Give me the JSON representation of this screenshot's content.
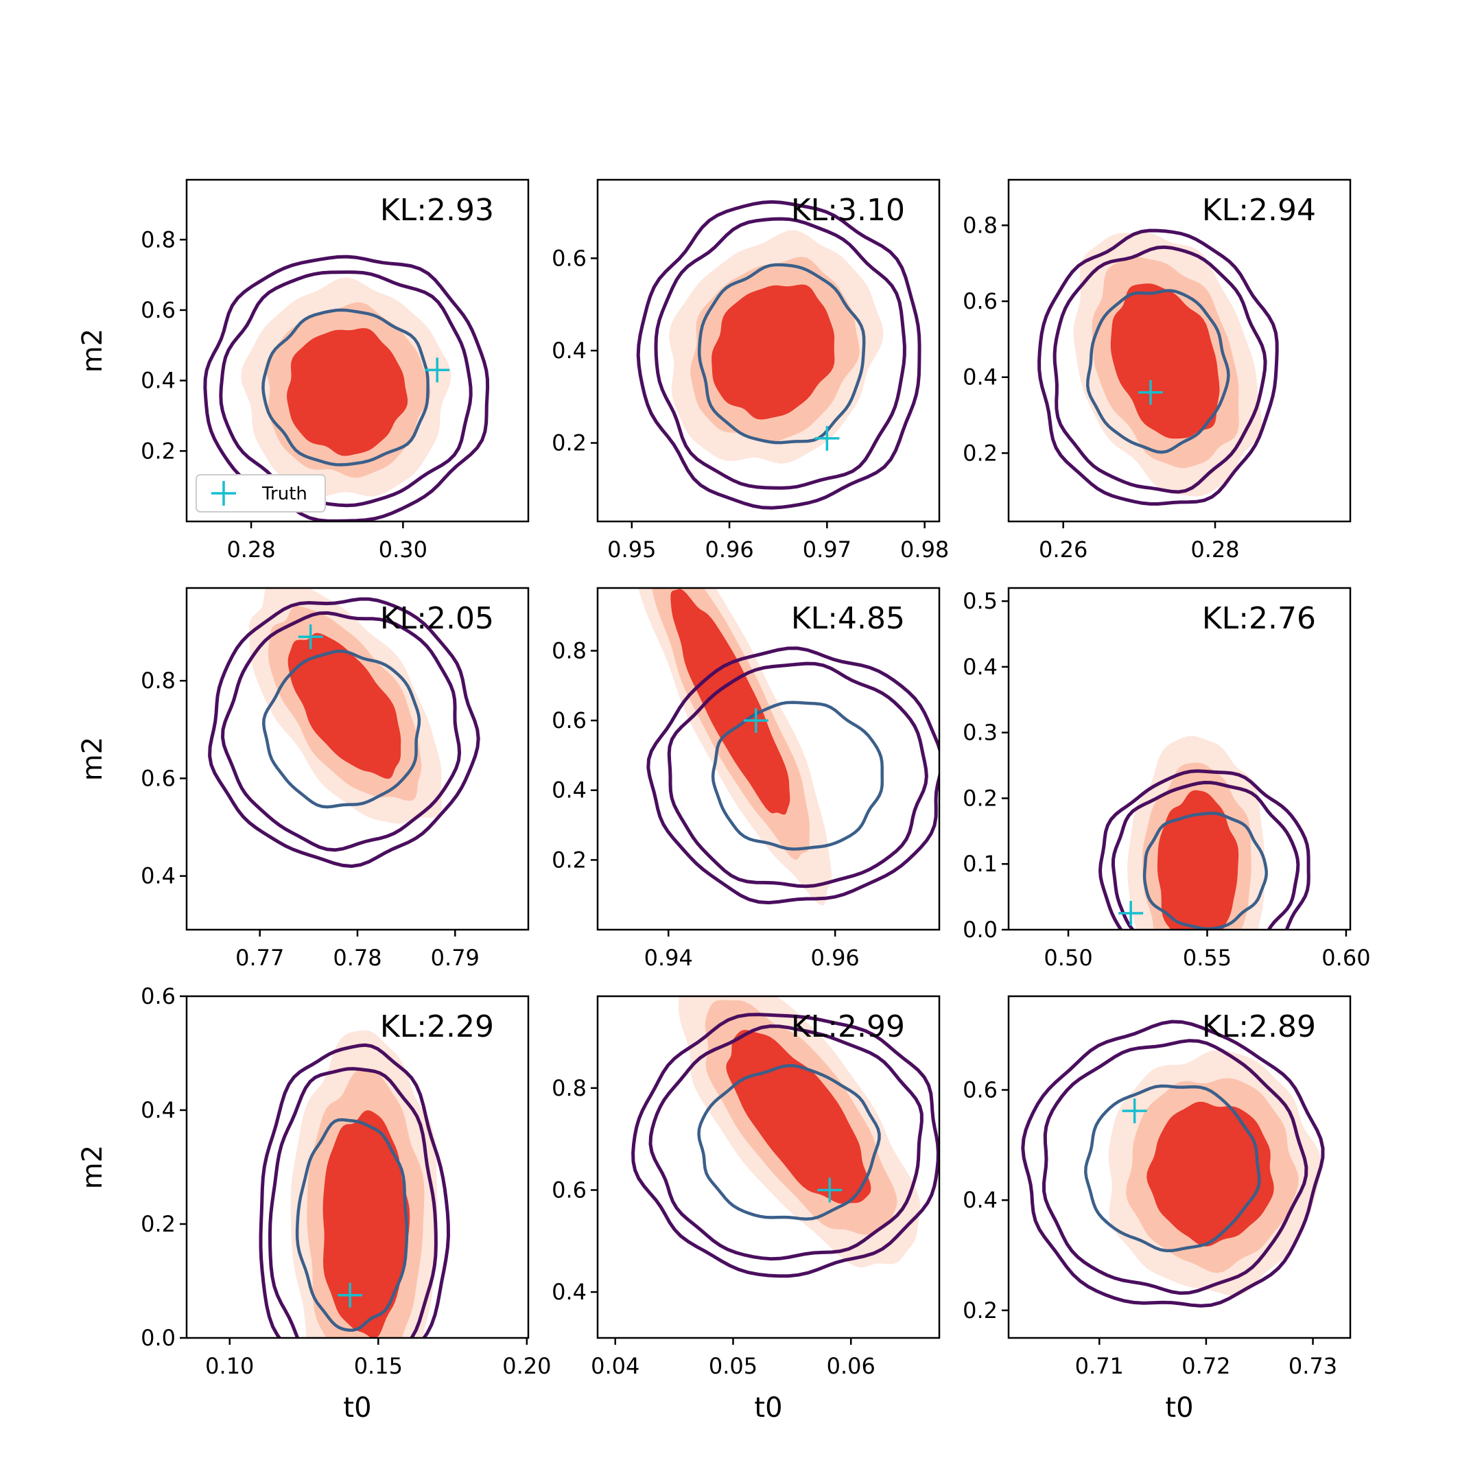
{
  "chart_data": {
    "type": "scatter",
    "grid": false,
    "colors": {
      "fill_levels": [
        "#fde6dc",
        "#fbc3ad",
        "#e83a2d"
      ],
      "outer_contour": "#4a0e5e",
      "inner_contour": "#3b5f8a",
      "truth": "#17becf"
    },
    "legend": {
      "entry": "Truth",
      "placement": "lower-left",
      "panel": 0
    },
    "panels": [
      {
        "kl": "KL:2.93",
        "xlabel": "",
        "ylabel": "m2",
        "xlim": [
          0.2715,
          0.3165
        ],
        "ylim": [
          0.0,
          0.97
        ],
        "xticks": [
          0.28,
          0.3
        ],
        "xtick_labels": [
          "0.28",
          "0.30"
        ],
        "yticks": [
          0.2,
          0.4,
          0.6,
          0.8
        ],
        "ytick_labels": [
          "0.2",
          "0.4",
          "0.6",
          "0.8"
        ],
        "truth": [
          0.3045,
          0.43
        ],
        "center": [
          0.2925,
          0.37
        ],
        "spread": [
          0.0046,
          0.105
        ],
        "rho": 0.0,
        "contour_center": [
          0.2926,
          0.38
        ],
        "contour_spread": [
          0.0062,
          0.125
        ]
      },
      {
        "kl": "KL:3.10",
        "xlabel": "",
        "ylabel": "",
        "xlim": [
          0.9465,
          0.9815
        ],
        "ylim": [
          0.03,
          0.77
        ],
        "xticks": [
          0.95,
          0.96,
          0.97,
          0.98
        ],
        "xtick_labels": [
          "0.95",
          "0.96",
          "0.97",
          "0.98"
        ],
        "yticks": [
          0.2,
          0.4,
          0.6
        ],
        "ytick_labels": [
          "0.2",
          "0.4",
          "0.6"
        ],
        "truth": [
          0.97,
          0.21
        ],
        "center": [
          0.9645,
          0.4
        ],
        "spread": [
          0.0037,
          0.085
        ],
        "rho": 0.15,
        "contour_center": [
          0.9653,
          0.39
        ],
        "contour_spread": [
          0.0048,
          0.11
        ]
      },
      {
        "kl": "KL:2.94",
        "xlabel": "",
        "ylabel": "",
        "xlim": [
          0.2528,
          0.2978
        ],
        "ylim": [
          0.02,
          0.92
        ],
        "xticks": [
          0.26,
          0.28
        ],
        "xtick_labels": [
          "0.26",
          "0.28"
        ],
        "yticks": [
          0.2,
          0.4,
          0.6,
          0.8
        ],
        "ytick_labels": [
          "0.2",
          "0.4",
          "0.6",
          "0.8"
        ],
        "truth": [
          0.2715,
          0.36
        ],
        "center": [
          0.2735,
          0.44
        ],
        "spread": [
          0.0042,
          0.12
        ],
        "rho": -0.3,
        "contour_center": [
          0.2724,
          0.42
        ],
        "contour_spread": [
          0.0052,
          0.12
        ]
      },
      {
        "kl": "KL:2.05",
        "xlabel": "",
        "ylabel": "m2",
        "xlim": [
          0.7625,
          0.7975
        ],
        "ylim": [
          0.29,
          0.99
        ],
        "xticks": [
          0.77,
          0.78,
          0.79
        ],
        "xtick_labels": [
          "0.77",
          "0.78",
          "0.79"
        ],
        "yticks": [
          0.4,
          0.6,
          0.8
        ],
        "ytick_labels": [
          "0.4",
          "0.6",
          "0.8"
        ],
        "truth": [
          0.7752,
          0.89
        ],
        "center": [
          0.7788,
          0.75
        ],
        "spread": [
          0.0034,
          0.085
        ],
        "rho": -0.6,
        "contour_center": [
          0.7785,
          0.7
        ],
        "contour_spread": [
          0.0045,
          0.09
        ]
      },
      {
        "kl": "KL:4.85",
        "xlabel": "",
        "ylabel": "",
        "xlim": [
          0.9315,
          0.9725
        ],
        "ylim": [
          0.0,
          0.98
        ],
        "xticks": [
          0.94,
          0.96
        ],
        "xtick_labels": [
          "0.94",
          "0.96"
        ],
        "yticks": [
          0.2,
          0.4,
          0.6,
          0.8
        ],
        "ytick_labels": [
          "0.2",
          "0.4",
          "0.6",
          "0.8"
        ],
        "truth": [
          0.9505,
          0.6
        ],
        "center": [
          0.9475,
          0.65
        ],
        "spread": [
          0.0042,
          0.19
        ],
        "rho": -0.88,
        "contour_center": [
          0.9555,
          0.44
        ],
        "contour_spread": [
          0.0058,
          0.12
        ]
      },
      {
        "kl": "KL:2.76",
        "xlabel": "",
        "ylabel": "",
        "xlim": [
          0.4785,
          0.6015
        ],
        "ylim": [
          0.0,
          0.52
        ],
        "xticks": [
          0.5,
          0.55,
          0.6
        ],
        "xtick_labels": [
          "0.50",
          "0.55",
          "0.60"
        ],
        "yticks": [
          0.0,
          0.1,
          0.2,
          0.3,
          0.4,
          0.5
        ],
        "ytick_labels": [
          "0.0",
          "0.1",
          "0.2",
          "0.3",
          "0.4",
          "0.5"
        ],
        "truth": [
          0.5225,
          0.025
        ],
        "center": [
          0.5465,
          0.09
        ],
        "spread": [
          0.0085,
          0.07
        ],
        "rho": 0.0,
        "contour_center": [
          0.549,
          0.09
        ],
        "contour_spread": [
          0.0125,
          0.05
        ]
      },
      {
        "kl": "KL:2.29",
        "xlabel": "t0",
        "ylabel": "m2",
        "xlim": [
          0.0855,
          0.2005
        ],
        "ylim": [
          0.0,
          0.6
        ],
        "xticks": [
          0.1,
          0.15,
          0.2
        ],
        "xtick_labels": [
          "0.10",
          "0.15",
          "0.20"
        ],
        "yticks": [
          0.0,
          0.2,
          0.4,
          0.6
        ],
        "ytick_labels": [
          "0.0",
          "0.2",
          "0.4",
          "0.6"
        ],
        "truth": [
          0.1405,
          0.075
        ],
        "center": [
          0.1455,
          0.2
        ],
        "spread": [
          0.0085,
          0.115
        ],
        "rho": 0.0,
        "contour_center": [
          0.1415,
          0.2
        ],
        "contour_spread": [
          0.0105,
          0.105
        ]
      },
      {
        "kl": "KL:2.99",
        "xlabel": "t0",
        "ylabel": "",
        "xlim": [
          0.0385,
          0.0675
        ],
        "ylim": [
          0.31,
          0.98
        ],
        "xticks": [
          0.04,
          0.05,
          0.06
        ],
        "xtick_labels": [
          "0.04",
          "0.05",
          "0.06"
        ],
        "yticks": [
          0.4,
          0.6,
          0.8
        ],
        "ytick_labels": [
          "0.4",
          "0.6",
          "0.8"
        ],
        "truth": [
          0.0582,
          0.6
        ],
        "center": [
          0.0555,
          0.74
        ],
        "spread": [
          0.0035,
          0.1
        ],
        "rho": -0.72,
        "contour_center": [
          0.0547,
          0.69
        ],
        "contour_spread": [
          0.0043,
          0.085
        ]
      },
      {
        "kl": "KL:2.89",
        "xlabel": "t0",
        "ylabel": "",
        "xlim": [
          0.7015,
          0.7335
        ],
        "ylim": [
          0.15,
          0.77
        ],
        "xticks": [
          0.71,
          0.72,
          0.73
        ],
        "xtick_labels": [
          "0.71",
          "0.72",
          "0.73"
        ],
        "yticks": [
          0.2,
          0.4,
          0.6
        ],
        "ytick_labels": [
          "0.2",
          "0.4",
          "0.6"
        ],
        "truth": [
          0.7133,
          0.562
        ],
        "center": [
          0.7205,
          0.45
        ],
        "spread": [
          0.0034,
          0.075
        ],
        "rho": 0.0,
        "contour_center": [
          0.7168,
          0.46
        ],
        "contour_spread": [
          0.0046,
          0.085
        ]
      }
    ]
  }
}
